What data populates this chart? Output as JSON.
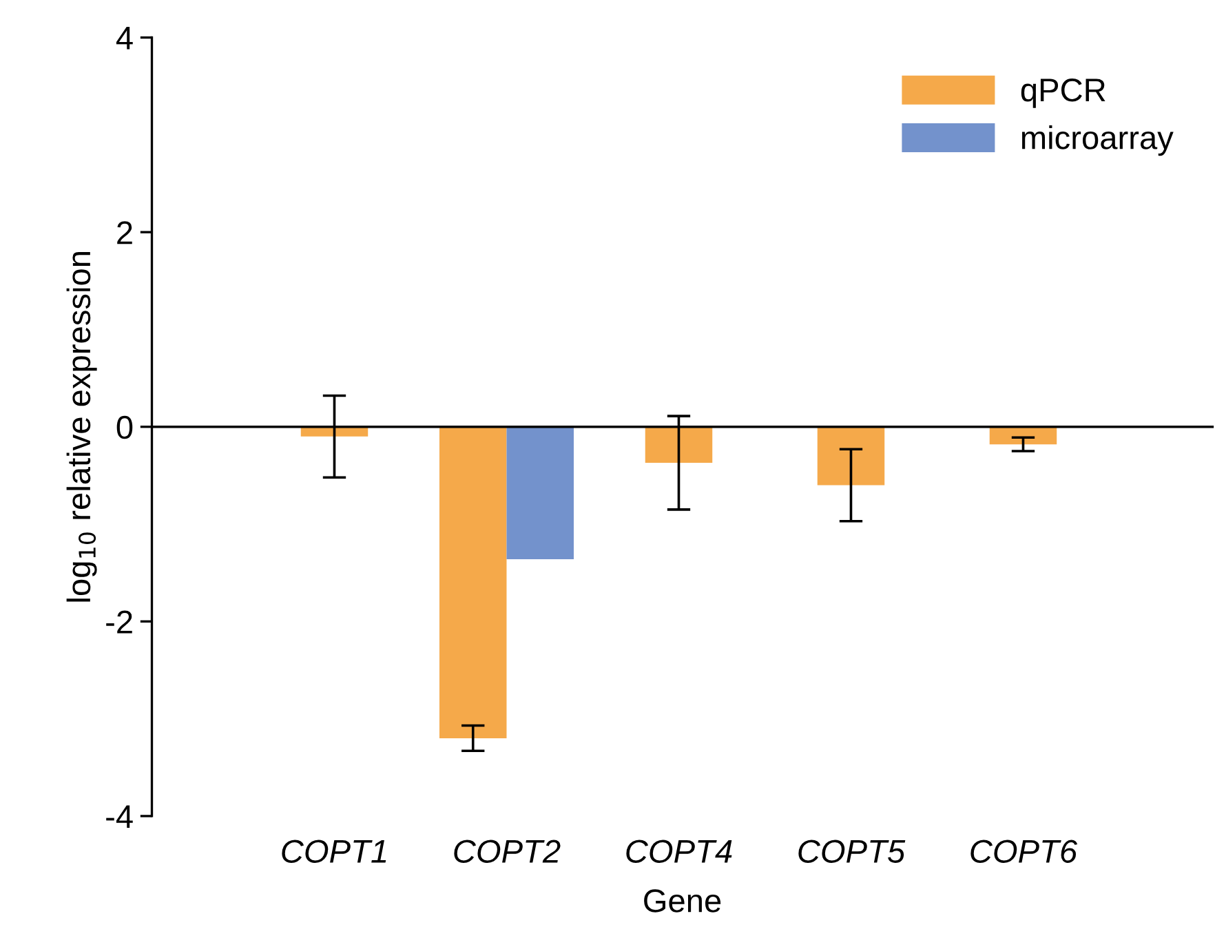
{
  "chart_data": {
    "type": "bar",
    "xlabel": "Gene",
    "ylabel": "log$_{10}$ relative expression",
    "categories": [
      "COPT1",
      "COPT2",
      "COPT4",
      "COPT5",
      "COPT6"
    ],
    "series": [
      {
        "name": "qPCR",
        "color": "#f5a94a",
        "values": [
          -0.1,
          -3.2,
          -0.37,
          -0.6,
          -0.18
        ],
        "errors": [
          0.42,
          0.13,
          0.48,
          0.37,
          0.07
        ]
      },
      {
        "name": "microarray",
        "color": "#7392cc",
        "values": [
          null,
          -1.36,
          null,
          null,
          null
        ]
      }
    ],
    "ylim": [
      -4,
      4
    ],
    "yticks": [
      -4,
      -2,
      0,
      2,
      4
    ],
    "legend": "top right"
  }
}
